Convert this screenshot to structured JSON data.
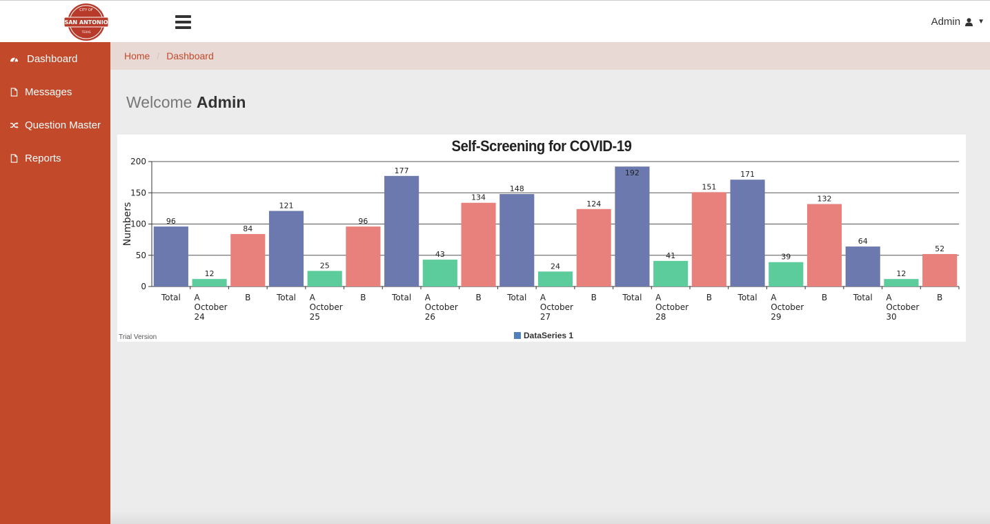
{
  "header": {
    "logo_lines": [
      "CITY OF",
      "SAN ANTONIO",
      "TEXAS"
    ],
    "user_label": "Admin"
  },
  "sidebar": {
    "items": [
      {
        "label": "Dashboard",
        "icon": "dashboard-icon"
      },
      {
        "label": "Messages",
        "icon": "file-icon"
      },
      {
        "label": "Question Master",
        "icon": "shuffle-icon"
      },
      {
        "label": "Reports",
        "icon": "file-icon"
      }
    ]
  },
  "breadcrumb": {
    "home": "Home",
    "current": "Dashboard"
  },
  "welcome": {
    "prefix": "Welcome",
    "name": "Admin"
  },
  "colors": {
    "brand": "#c2492a",
    "total_bar": "#6b79ae",
    "a_bar": "#5ccc9c",
    "b_bar": "#e8817c",
    "legend_swatch": "#4f81bd"
  },
  "chart_note": "Trial Version",
  "chart_data": {
    "type": "bar",
    "title": "Self-Screening for COVID-19",
    "ylabel": "Numbers",
    "xlabel": "",
    "ylim": [
      0,
      200
    ],
    "yticks": [
      0,
      50,
      100,
      150,
      200
    ],
    "grid": true,
    "legend": {
      "label": "DataSeries 1",
      "placement": "bottom-center"
    },
    "groups": [
      {
        "date": [
          "October",
          "24"
        ],
        "categories": [
          "Total",
          "A",
          "B"
        ],
        "values": [
          96,
          12,
          84
        ]
      },
      {
        "date": [
          "October",
          "25"
        ],
        "categories": [
          "Total",
          "A",
          "B"
        ],
        "values": [
          121,
          25,
          96
        ]
      },
      {
        "date": [
          "October",
          "26"
        ],
        "categories": [
          "Total",
          "A",
          "B"
        ],
        "values": [
          177,
          43,
          134
        ]
      },
      {
        "date": [
          "October",
          "27"
        ],
        "categories": [
          "Total",
          "A",
          "B"
        ],
        "values": [
          148,
          24,
          124
        ]
      },
      {
        "date": [
          "October",
          "28"
        ],
        "categories": [
          "Total",
          "A",
          "B"
        ],
        "values": [
          192,
          41,
          151
        ]
      },
      {
        "date": [
          "October",
          "29"
        ],
        "categories": [
          "Total",
          "A",
          "B"
        ],
        "values": [
          171,
          39,
          132
        ]
      },
      {
        "date": [
          "October",
          "30"
        ],
        "categories": [
          "Total",
          "A",
          "B"
        ],
        "values": [
          64,
          12,
          52
        ]
      }
    ]
  }
}
